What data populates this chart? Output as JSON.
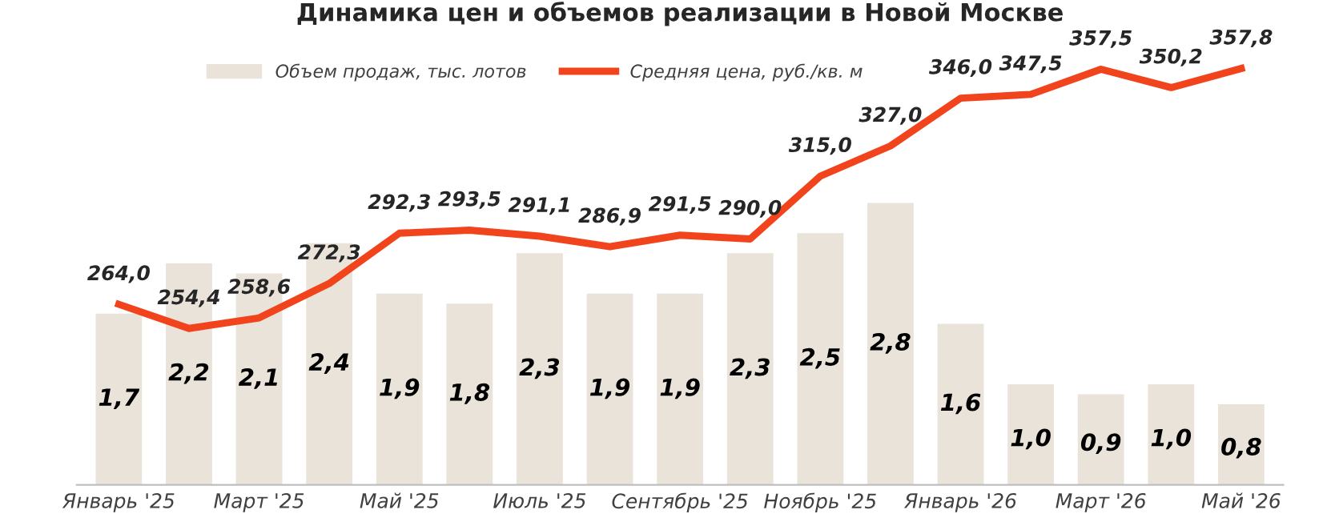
{
  "chart_data": {
    "type": "bar",
    "title": "Динамика цен и объемов реализации в Новой Москве",
    "categories": [
      "Январь '25",
      null,
      "Март '25",
      null,
      "Май '25",
      null,
      "Июль '25",
      null,
      "Сентябрь '25",
      null,
      "Ноябрь '25",
      null,
      "Январь '26",
      null,
      "Март '26",
      null,
      "Май '26"
    ],
    "series": [
      {
        "name": "Объем продаж, тыс. лотов",
        "color": "#e9e3d9",
        "values": [
          1.7,
          2.2,
          2.1,
          2.4,
          1.9,
          1.8,
          2.3,
          1.9,
          1.9,
          2.3,
          2.5,
          2.8,
          1.6,
          1.0,
          0.9,
          1.0,
          0.8
        ],
        "value_labels": [
          "1,7",
          "2,2",
          "2,1",
          "2,4",
          "1,9",
          "1,8",
          "2,3",
          "1,9",
          "1,9",
          "2,3",
          "2,5",
          "2,8",
          "1,6",
          "1,0",
          "0,9",
          "1,0",
          "0,8"
        ]
      },
      {
        "name": "Средняя цена, руб./кв. м",
        "type": "line",
        "axis": "y2",
        "color": "#f2441c",
        "values": [
          264.0,
          254.4,
          258.6,
          272.3,
          292.3,
          293.5,
          291.1,
          286.9,
          291.5,
          290.0,
          315.0,
          327.0,
          346.0,
          347.5,
          357.5,
          350.2,
          357.8
        ],
        "value_labels": [
          "264,0",
          "254,4",
          "258,6",
          "272,3",
          "292,3",
          "293,5",
          "291,1",
          "286,9",
          "291,5",
          "290,0",
          "315,0",
          "327,0",
          "346,0",
          "347,5",
          "357,5",
          "350,2",
          "357,8"
        ]
      }
    ],
    "tick_labels": "x",
    "grid": false,
    "legend": "top",
    "marker": "none",
    "line_style": "solid"
  }
}
